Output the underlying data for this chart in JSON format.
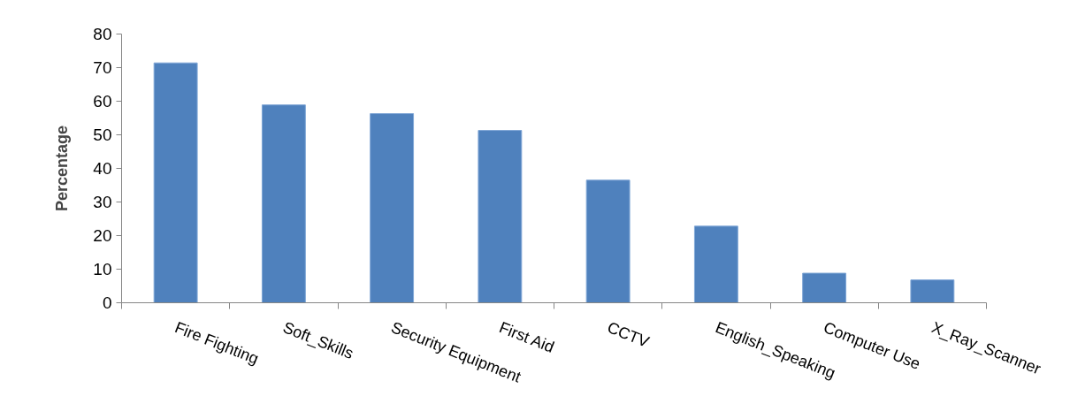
{
  "chart_data": {
    "type": "bar",
    "ylabel": "Percentage",
    "categories": [
      "Fire Fighting",
      "Soft_Skills",
      "Security Equipment",
      "First Aid",
      "CCTV",
      "English_Speaking",
      "Computer Use",
      "X_Ray_Scanner"
    ],
    "values": [
      71.4,
      58.9,
      56.3,
      51.3,
      36.5,
      22.8,
      8.8,
      6.8
    ],
    "color": "#4f81bd",
    "ylim": [
      0,
      80
    ],
    "yticks": [
      0,
      10,
      20,
      30,
      40,
      50,
      60,
      70,
      80
    ],
    "grid": false
  }
}
